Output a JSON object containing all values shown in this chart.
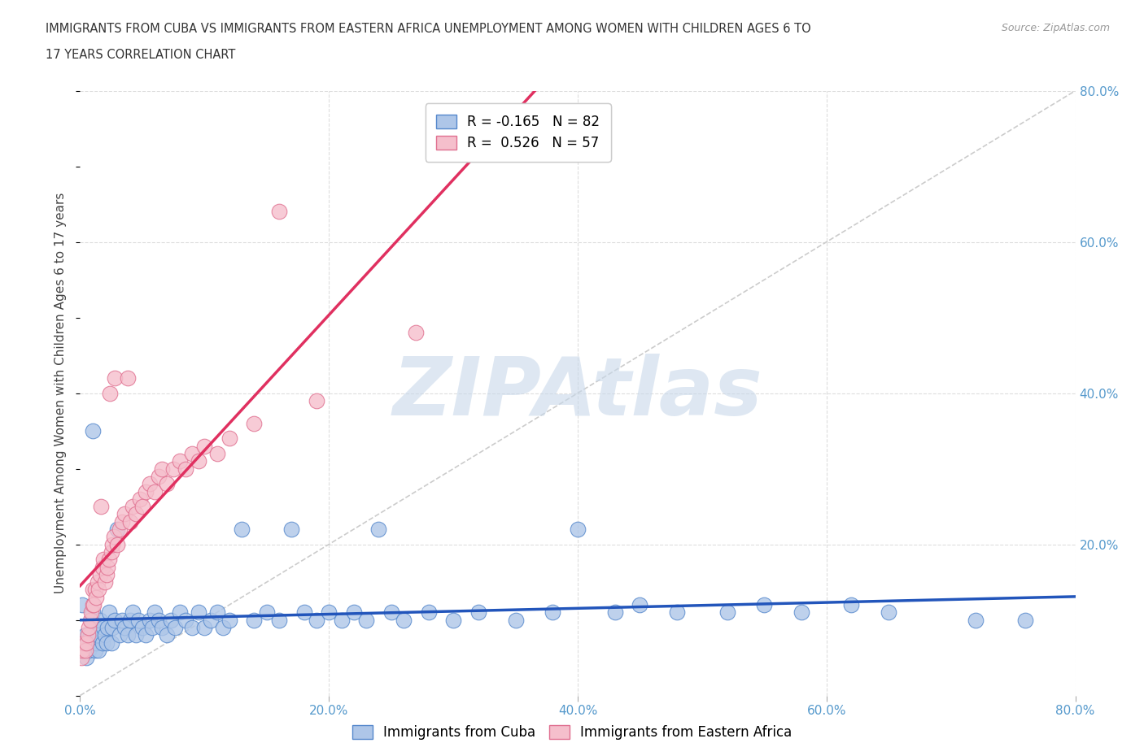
{
  "title_line1": "IMMIGRANTS FROM CUBA VS IMMIGRANTS FROM EASTERN AFRICA UNEMPLOYMENT AMONG WOMEN WITH CHILDREN AGES 6 TO",
  "title_line2": "17 YEARS CORRELATION CHART",
  "source": "Source: ZipAtlas.com",
  "ylabel": "Unemployment Among Women with Children Ages 6 to 17 years",
  "xlim": [
    0.0,
    0.8
  ],
  "ylim": [
    0.0,
    0.8
  ],
  "xticks": [
    0.0,
    0.2,
    0.4,
    0.6,
    0.8
  ],
  "yticks": [
    0.0,
    0.2,
    0.4,
    0.6,
    0.8
  ],
  "xtick_labels": [
    "0.0%",
    "20.0%",
    "40.0%",
    "60.0%",
    "80.0%"
  ],
  "ytick_labels_right": [
    "",
    "20.0%",
    "40.0%",
    "60.0%",
    "80.0%"
  ],
  "cuba_color": "#aec6e8",
  "cuba_edge_color": "#5588cc",
  "eastern_africa_color": "#f5bfcc",
  "eastern_africa_edge_color": "#e07090",
  "cuba_line_color": "#2255bb",
  "eastern_africa_line_color": "#e03060",
  "legend_cuba_label": "Immigrants from Cuba",
  "legend_ea_label": "Immigrants from Eastern Africa",
  "cuba_R": -0.165,
  "cuba_N": 82,
  "ea_R": 0.526,
  "ea_N": 57,
  "watermark": "ZIPAtlas",
  "watermark_color": "#c8d8ea",
  "background_color": "#ffffff",
  "grid_color": "#dddddd",
  "cuba_x": [
    0.002,
    0.003,
    0.004,
    0.005,
    0.006,
    0.007,
    0.008,
    0.009,
    0.01,
    0.01,
    0.012,
    0.013,
    0.014,
    0.015,
    0.016,
    0.018,
    0.019,
    0.02,
    0.021,
    0.022,
    0.023,
    0.025,
    0.026,
    0.028,
    0.03,
    0.032,
    0.034,
    0.036,
    0.038,
    0.04,
    0.042,
    0.045,
    0.047,
    0.05,
    0.053,
    0.056,
    0.058,
    0.06,
    0.063,
    0.066,
    0.07,
    0.073,
    0.076,
    0.08,
    0.085,
    0.09,
    0.095,
    0.1,
    0.105,
    0.11,
    0.115,
    0.12,
    0.13,
    0.14,
    0.15,
    0.16,
    0.17,
    0.18,
    0.19,
    0.2,
    0.21,
    0.22,
    0.23,
    0.24,
    0.25,
    0.26,
    0.28,
    0.3,
    0.32,
    0.35,
    0.38,
    0.4,
    0.43,
    0.45,
    0.48,
    0.52,
    0.55,
    0.58,
    0.62,
    0.65,
    0.72,
    0.76
  ],
  "cuba_y": [
    0.12,
    0.06,
    0.08,
    0.05,
    0.07,
    0.06,
    0.08,
    0.1,
    0.11,
    0.35,
    0.06,
    0.07,
    0.08,
    0.06,
    0.1,
    0.07,
    0.09,
    0.08,
    0.07,
    0.09,
    0.11,
    0.07,
    0.09,
    0.1,
    0.22,
    0.08,
    0.1,
    0.09,
    0.08,
    0.1,
    0.11,
    0.08,
    0.1,
    0.09,
    0.08,
    0.1,
    0.09,
    0.11,
    0.1,
    0.09,
    0.08,
    0.1,
    0.09,
    0.11,
    0.1,
    0.09,
    0.11,
    0.09,
    0.1,
    0.11,
    0.09,
    0.1,
    0.22,
    0.1,
    0.11,
    0.1,
    0.22,
    0.11,
    0.1,
    0.11,
    0.1,
    0.11,
    0.1,
    0.22,
    0.11,
    0.1,
    0.11,
    0.1,
    0.11,
    0.1,
    0.11,
    0.22,
    0.11,
    0.12,
    0.11,
    0.11,
    0.12,
    0.11,
    0.12,
    0.11,
    0.1,
    0.1
  ],
  "ea_x": [
    0.001,
    0.002,
    0.003,
    0.004,
    0.005,
    0.006,
    0.007,
    0.008,
    0.009,
    0.01,
    0.01,
    0.011,
    0.012,
    0.013,
    0.014,
    0.015,
    0.016,
    0.017,
    0.018,
    0.019,
    0.02,
    0.021,
    0.022,
    0.023,
    0.024,
    0.025,
    0.026,
    0.027,
    0.028,
    0.03,
    0.032,
    0.034,
    0.036,
    0.038,
    0.04,
    0.042,
    0.045,
    0.048,
    0.05,
    0.053,
    0.056,
    0.06,
    0.063,
    0.066,
    0.07,
    0.075,
    0.08,
    0.085,
    0.09,
    0.095,
    0.1,
    0.11,
    0.12,
    0.14,
    0.16,
    0.19,
    0.27
  ],
  "ea_y": [
    0.05,
    0.06,
    0.07,
    0.06,
    0.07,
    0.08,
    0.09,
    0.1,
    0.11,
    0.12,
    0.14,
    0.12,
    0.14,
    0.13,
    0.15,
    0.14,
    0.16,
    0.25,
    0.17,
    0.18,
    0.15,
    0.16,
    0.17,
    0.18,
    0.4,
    0.19,
    0.2,
    0.21,
    0.42,
    0.2,
    0.22,
    0.23,
    0.24,
    0.42,
    0.23,
    0.25,
    0.24,
    0.26,
    0.25,
    0.27,
    0.28,
    0.27,
    0.29,
    0.3,
    0.28,
    0.3,
    0.31,
    0.3,
    0.32,
    0.31,
    0.33,
    0.32,
    0.34,
    0.36,
    0.64,
    0.39,
    0.48
  ]
}
